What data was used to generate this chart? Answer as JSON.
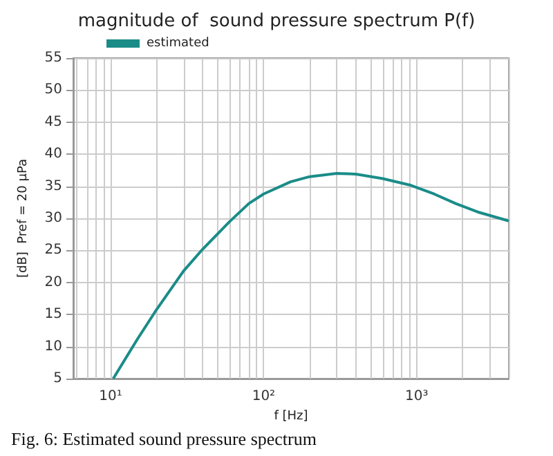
{
  "chart_data": {
    "type": "line",
    "title": "magnitude of  sound pressure spectrum P(f)",
    "xlabel": "f [Hz]",
    "ylabel": "[dB]  Pref = 20 µPa",
    "annotations": [
      "Fig. 6: Estimated sound pressure spectrum"
    ],
    "x": [
      10.4,
      15,
      20,
      30,
      40,
      60,
      80,
      100,
      150,
      200,
      300,
      400,
      600,
      900,
      1300,
      1800,
      2500,
      4000
    ],
    "series": [
      {
        "name": "estimated",
        "color": "#1a8c88",
        "values": [
          5,
          11.2,
          15.8,
          21.8,
          25.2,
          29.5,
          32.3,
          33.8,
          35.7,
          36.5,
          37,
          36.9,
          36.2,
          35.2,
          33.8,
          32.3,
          31,
          29.6
        ]
      }
    ],
    "log": "x",
    "xlim": [
      5.7,
      4000
    ],
    "xticks": [
      {
        "value": 10,
        "label": "10¹"
      },
      {
        "value": 100,
        "label": "10²"
      },
      {
        "value": 1000,
        "label": "10³"
      }
    ],
    "ylim": [
      5,
      55
    ],
    "yticks": [
      5,
      10,
      15,
      20,
      25,
      30,
      35,
      40,
      45,
      50,
      55
    ],
    "grid": true,
    "legend": "top left",
    "marker": "none",
    "line_style": "solid"
  }
}
